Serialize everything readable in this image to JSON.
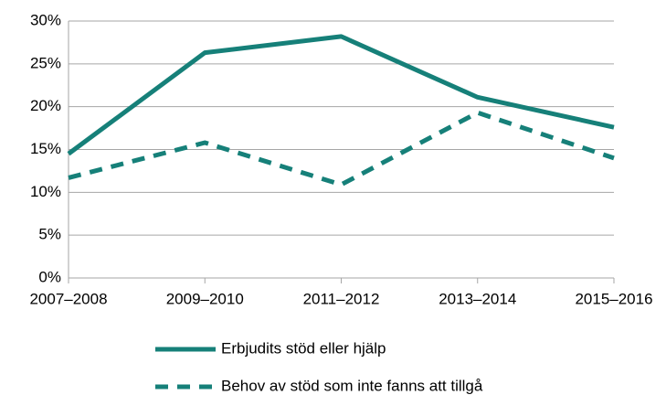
{
  "chart_data": {
    "type": "line",
    "categories": [
      "2007–2008",
      "2009–2010",
      "2011–2012",
      "2013–2014",
      "2015–2016"
    ],
    "series": [
      {
        "name": "Erbjudits stöd eller hjälp",
        "color": "#168079",
        "dash": "solid",
        "values": [
          14.5,
          26.3,
          28.2,
          21.1,
          17.6
        ]
      },
      {
        "name": "Behov av stöd som inte fanns att tillgå",
        "color": "#168079",
        "dash": "dashed",
        "values": [
          11.7,
          15.8,
          10.9,
          19.3,
          14.0
        ]
      }
    ],
    "ylim": [
      0,
      30
    ],
    "yticks": [
      {
        "value": 0,
        "label": "0%"
      },
      {
        "value": 5,
        "label": "5%"
      },
      {
        "value": 10,
        "label": "10%"
      },
      {
        "value": 15,
        "label": "15%"
      },
      {
        "value": 20,
        "label": "20%"
      },
      {
        "value": 25,
        "label": "25%"
      },
      {
        "value": 30,
        "label": "30%"
      }
    ],
    "grid": true,
    "legend": "bottom"
  }
}
